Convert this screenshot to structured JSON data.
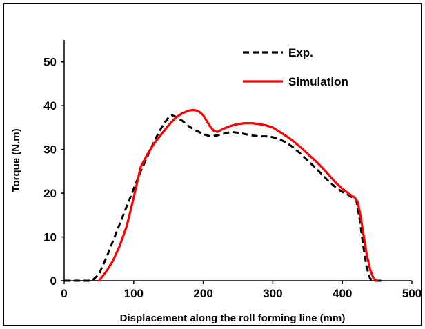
{
  "chart_data": {
    "type": "line",
    "title": "",
    "xlabel": "Displacement along the roll forming line (mm)",
    "ylabel": "Torque (N.m)",
    "xlim": [
      0,
      500
    ],
    "ylim": [
      0,
      55
    ],
    "xticks": [
      "0",
      "100",
      "200",
      "300",
      "400",
      "500"
    ],
    "yticks": [
      "0",
      "10",
      "20",
      "30",
      "40",
      "50"
    ],
    "grid": false,
    "legend_position": "top-right",
    "series": [
      {
        "name": "Exp.",
        "color": "#000000",
        "style": "dashed",
        "x": [
          0,
          40,
          50,
          60,
          70,
          80,
          90,
          100,
          110,
          120,
          130,
          140,
          150,
          155,
          160,
          170,
          180,
          190,
          200,
          210,
          220,
          230,
          240,
          250,
          260,
          270,
          280,
          290,
          300,
          310,
          320,
          330,
          340,
          350,
          360,
          370,
          380,
          390,
          400,
          410,
          415,
          420,
          425,
          430,
          435,
          440,
          445,
          450,
          460
        ],
        "y": [
          0,
          0,
          1.5,
          5,
          9,
          13,
          17,
          21,
          25,
          28.5,
          32,
          35,
          37.3,
          37.8,
          37.5,
          36.5,
          35.2,
          34.3,
          33.5,
          33.0,
          33.2,
          33.6,
          34.0,
          33.8,
          33.5,
          33.2,
          33.0,
          33.0,
          32.8,
          32.3,
          31.5,
          30.4,
          29.0,
          27.5,
          26.0,
          24.4,
          22.8,
          21.4,
          20.3,
          19.5,
          19.0,
          18.5,
          14,
          8,
          3,
          0.5,
          0,
          0,
          0
        ]
      },
      {
        "name": "Simulation",
        "color": "#ff0000",
        "style": "solid",
        "x": [
          50,
          55,
          60,
          70,
          80,
          90,
          100,
          110,
          120,
          130,
          140,
          150,
          160,
          170,
          180,
          185,
          190,
          195,
          200,
          205,
          210,
          215,
          220,
          230,
          240,
          250,
          260,
          270,
          280,
          290,
          300,
          310,
          320,
          330,
          340,
          350,
          360,
          370,
          380,
          390,
          400,
          410,
          418,
          422,
          426,
          430,
          435,
          440,
          445,
          450
        ],
        "y": [
          0,
          1,
          2,
          4.5,
          8,
          12.5,
          19,
          26,
          29,
          31.5,
          33.5,
          35.5,
          37.2,
          38.3,
          38.9,
          39.0,
          38.9,
          38.5,
          37.8,
          36.5,
          35.2,
          34.3,
          34.0,
          34.8,
          35.4,
          35.8,
          36.0,
          36.0,
          35.8,
          35.5,
          35.0,
          34.0,
          33.0,
          31.8,
          30.5,
          29.0,
          27.6,
          26.0,
          24.3,
          22.5,
          21.0,
          19.8,
          19.0,
          18.0,
          15,
          11,
          6,
          2.5,
          0.5,
          0
        ]
      }
    ]
  }
}
